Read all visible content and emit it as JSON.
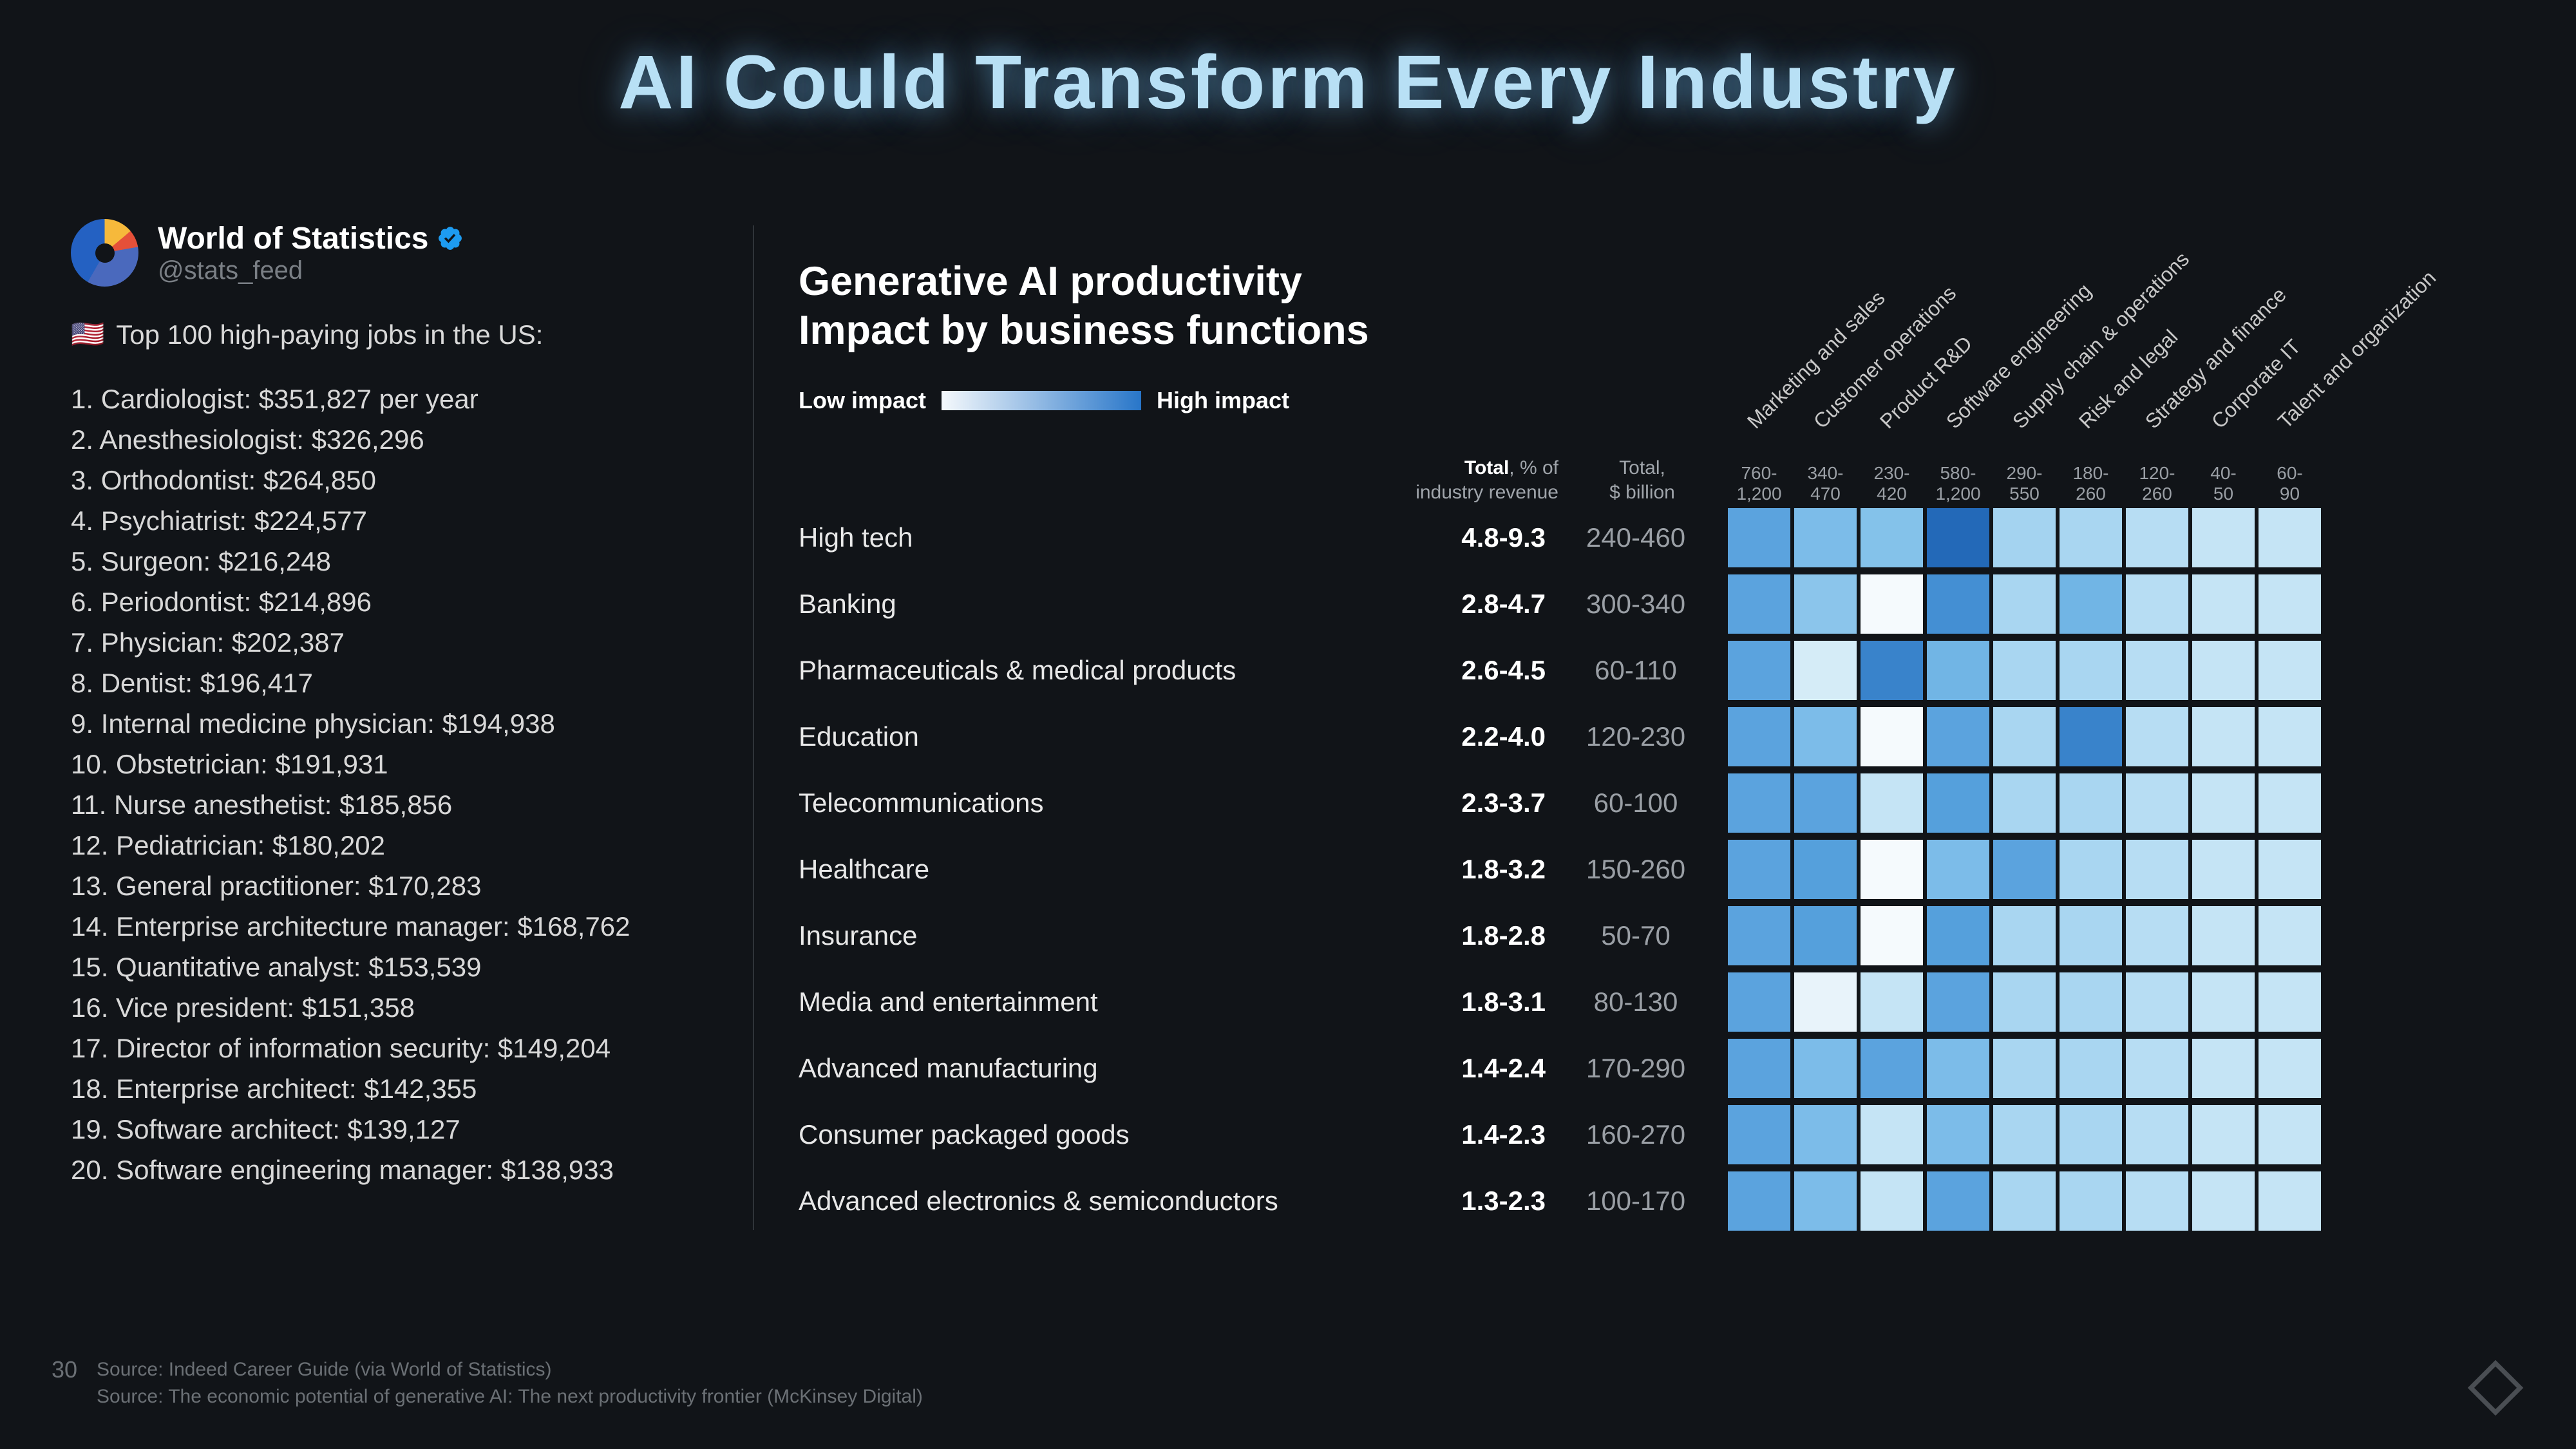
{
  "title": "AI Could Transform Every Industry",
  "page_number": "30",
  "profile": {
    "name": "World of Statistics",
    "handle": "@stats_feed"
  },
  "list_heading": "Top 100 high-paying jobs in the US:",
  "jobs": [
    "1. Cardiologist: $351,827 per year",
    "2. Anesthesiologist: $326,296",
    "3. Orthodontist: $264,850",
    "4. Psychiatrist: $224,577",
    "5. Surgeon: $216,248",
    "6. Periodontist: $214,896",
    "7. Physician: $202,387",
    "8. Dentist: $196,417",
    "9. Internal medicine physician: $194,938",
    "10. Obstetrician: $191,931",
    "11. Nurse anesthetist: $185,856",
    "12. Pediatrician: $180,202",
    "13. General practitioner: $170,283",
    "14. Enterprise architecture manager: $168,762",
    "15. Quantitative analyst: $153,539",
    "16. Vice president: $151,358",
    "17. Director of information security: $149,204",
    "18. Enterprise architect: $142,355",
    "19. Software architect: $139,127",
    "20. Software engineering manager: $138,933"
  ],
  "chart": {
    "title_line1": "Generative AI productivity",
    "title_line2": "Impact by business functions",
    "legend_low": "Low impact",
    "legend_high": "High impact",
    "header_total_pct_l1": "Total",
    "header_total_pct_l2": ", % of",
    "header_total_pct_l3": "industry revenue",
    "header_total_bil_l1": "Total,",
    "header_total_bil_l2": "$ billion",
    "columns": [
      {
        "label": "Marketing and sales",
        "range": "760-1,200"
      },
      {
        "label": "Customer operations",
        "range": "340-470"
      },
      {
        "label": "Product R&D",
        "range": "230-420"
      },
      {
        "label": "Software engineering",
        "range": "580-1,200"
      },
      {
        "label": "Supply chain & operations",
        "range": "290-550"
      },
      {
        "label": "Risk and legal",
        "range": "180-260"
      },
      {
        "label": "Strategy and finance",
        "range": "120-260"
      },
      {
        "label": "Corporate IT",
        "range": "40-50"
      },
      {
        "label": "Talent and organization",
        "range": "60-90"
      }
    ],
    "rows": [
      {
        "label": "High tech",
        "pct": "4.8-9.3",
        "bil": "240-460",
        "cells": [
          "#5ba3de",
          "#7cbce9",
          "#84c2ea",
          "#2369b8",
          "#a4d3f0",
          "#a9d6f1",
          "#b7ddf3",
          "#c5e4f5",
          "#c5e4f5"
        ]
      },
      {
        "label": "Banking",
        "pct": "2.8-4.7",
        "bil": "300-340",
        "cells": [
          "#5ba3de",
          "#8bc5eb",
          "#f5fafd",
          "#448fd3",
          "#a9d6f1",
          "#71b5e5",
          "#b7ddf3",
          "#c5e4f5",
          "#c5e4f5"
        ]
      },
      {
        "label": "Pharmaceuticals & medical products",
        "pct": "2.6-4.5",
        "bil": "60-110",
        "cells": [
          "#5ba3de",
          "#d5ecf7",
          "#3983cb",
          "#71b5e5",
          "#a9d6f1",
          "#a9d6f1",
          "#b7ddf3",
          "#c5e4f5",
          "#c5e4f5"
        ]
      },
      {
        "label": "Education",
        "pct": "2.2-4.0",
        "bil": "120-230",
        "cells": [
          "#5ba3de",
          "#7cbce9",
          "#f5fafd",
          "#5ba3de",
          "#a9d6f1",
          "#3983cb",
          "#b7ddf3",
          "#c5e4f5",
          "#c5e4f5"
        ]
      },
      {
        "label": "Telecommunications",
        "pct": "2.3-3.7",
        "bil": "60-100",
        "cells": [
          "#5ba3de",
          "#5ba3de",
          "#c5e4f5",
          "#55a0dc",
          "#a9d6f1",
          "#a9d6f1",
          "#b7ddf3",
          "#c5e4f5",
          "#c5e4f5"
        ]
      },
      {
        "label": "Healthcare",
        "pct": "1.8-3.2",
        "bil": "150-260",
        "cells": [
          "#5ba3de",
          "#55a0dc",
          "#f5fafd",
          "#7cbce9",
          "#5ba3de",
          "#a9d6f1",
          "#b7ddf3",
          "#c5e4f5",
          "#c5e4f5"
        ]
      },
      {
        "label": "Insurance",
        "pct": "1.8-2.8",
        "bil": "50-70",
        "cells": [
          "#5ba3de",
          "#55a0dc",
          "#f5fafd",
          "#55a0dc",
          "#a9d6f1",
          "#a9d6f1",
          "#b7ddf3",
          "#c5e4f5",
          "#c5e4f5"
        ]
      },
      {
        "label": "Media and entertainment",
        "pct": "1.8-3.1",
        "bil": "80-130",
        "cells": [
          "#5ba3de",
          "#e8f3fa",
          "#c5e4f5",
          "#5ba3de",
          "#a9d6f1",
          "#a9d6f1",
          "#b7ddf3",
          "#c5e4f5",
          "#c5e4f5"
        ]
      },
      {
        "label": "Advanced manufacturing",
        "pct": "1.4-2.4",
        "bil": "170-290",
        "cells": [
          "#5ba3de",
          "#7cbce9",
          "#5ba3de",
          "#7cbce9",
          "#a9d6f1",
          "#a9d6f1",
          "#b7ddf3",
          "#c5e4f5",
          "#c5e4f5"
        ]
      },
      {
        "label": "Consumer packaged goods",
        "pct": "1.4-2.3",
        "bil": "160-270",
        "cells": [
          "#5ba3de",
          "#7cbce9",
          "#c5e4f5",
          "#7cbce9",
          "#a9d6f1",
          "#a9d6f1",
          "#b7ddf3",
          "#c5e4f5",
          "#c5e4f5"
        ]
      },
      {
        "label": "Advanced electronics & semiconductors",
        "pct": "1.3-2.3",
        "bil": "100-170",
        "cells": [
          "#5ba3de",
          "#7cbce9",
          "#c5e4f5",
          "#5ba3de",
          "#a9d6f1",
          "#a9d6f1",
          "#b7ddf3",
          "#c5e4f5",
          "#c5e4f5"
        ]
      }
    ]
  },
  "sources": {
    "line1": "Source: Indeed Career Guide (via World of Statistics)",
    "line2": "Source: The economic potential of generative AI: The next productivity frontier (McKinsey Digital)"
  }
}
